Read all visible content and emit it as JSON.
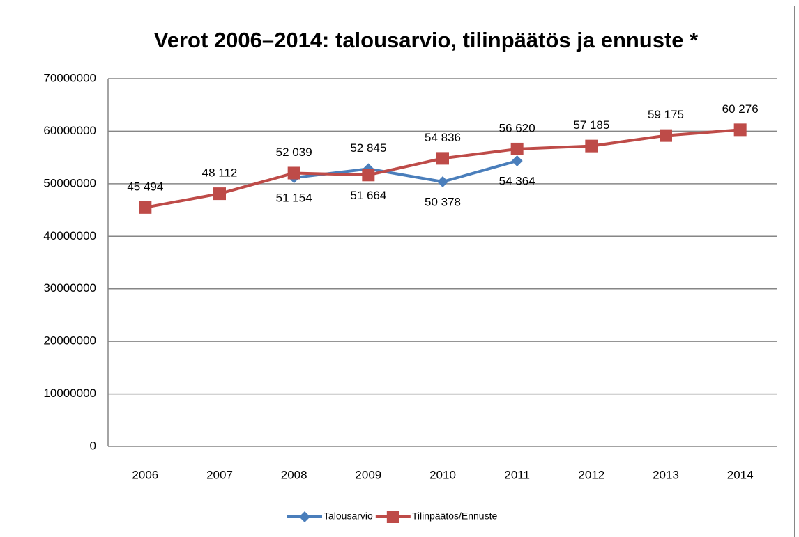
{
  "chart_data": {
    "type": "line",
    "title": "Verot 2006–2014: talousarvio, tilinpäätös ja ennuste *",
    "categories": [
      "2006",
      "2007",
      "2008",
      "2009",
      "2010",
      "2011",
      "2012",
      "2013",
      "2014"
    ],
    "series": [
      {
        "name": "Talousarvio",
        "color": "#4a7ebb",
        "marker": "diamond",
        "values": [
          null,
          null,
          51154000,
          52845000,
          50378000,
          54364000,
          null,
          null,
          null
        ],
        "value_labels": [
          null,
          null,
          "51 154",
          "52 845",
          "50 378",
          "54 364",
          null,
          null,
          null
        ]
      },
      {
        "name": "Tilinpäätös/Ennuste",
        "color": "#be4b48",
        "marker": "square",
        "values": [
          45494000,
          48112000,
          52039000,
          51664000,
          54836000,
          56620000,
          57185000,
          59175000,
          60276000
        ],
        "value_labels": [
          "45 494",
          "48 112",
          "52 039",
          "51 664",
          "54 836",
          "56 620",
          "57 185",
          "59 175",
          "60 276"
        ]
      }
    ],
    "ylim": [
      0,
      70000000
    ],
    "yticks": [
      0,
      10000000,
      20000000,
      30000000,
      40000000,
      50000000,
      60000000,
      70000000
    ],
    "grid": true,
    "legend": "bottom"
  }
}
